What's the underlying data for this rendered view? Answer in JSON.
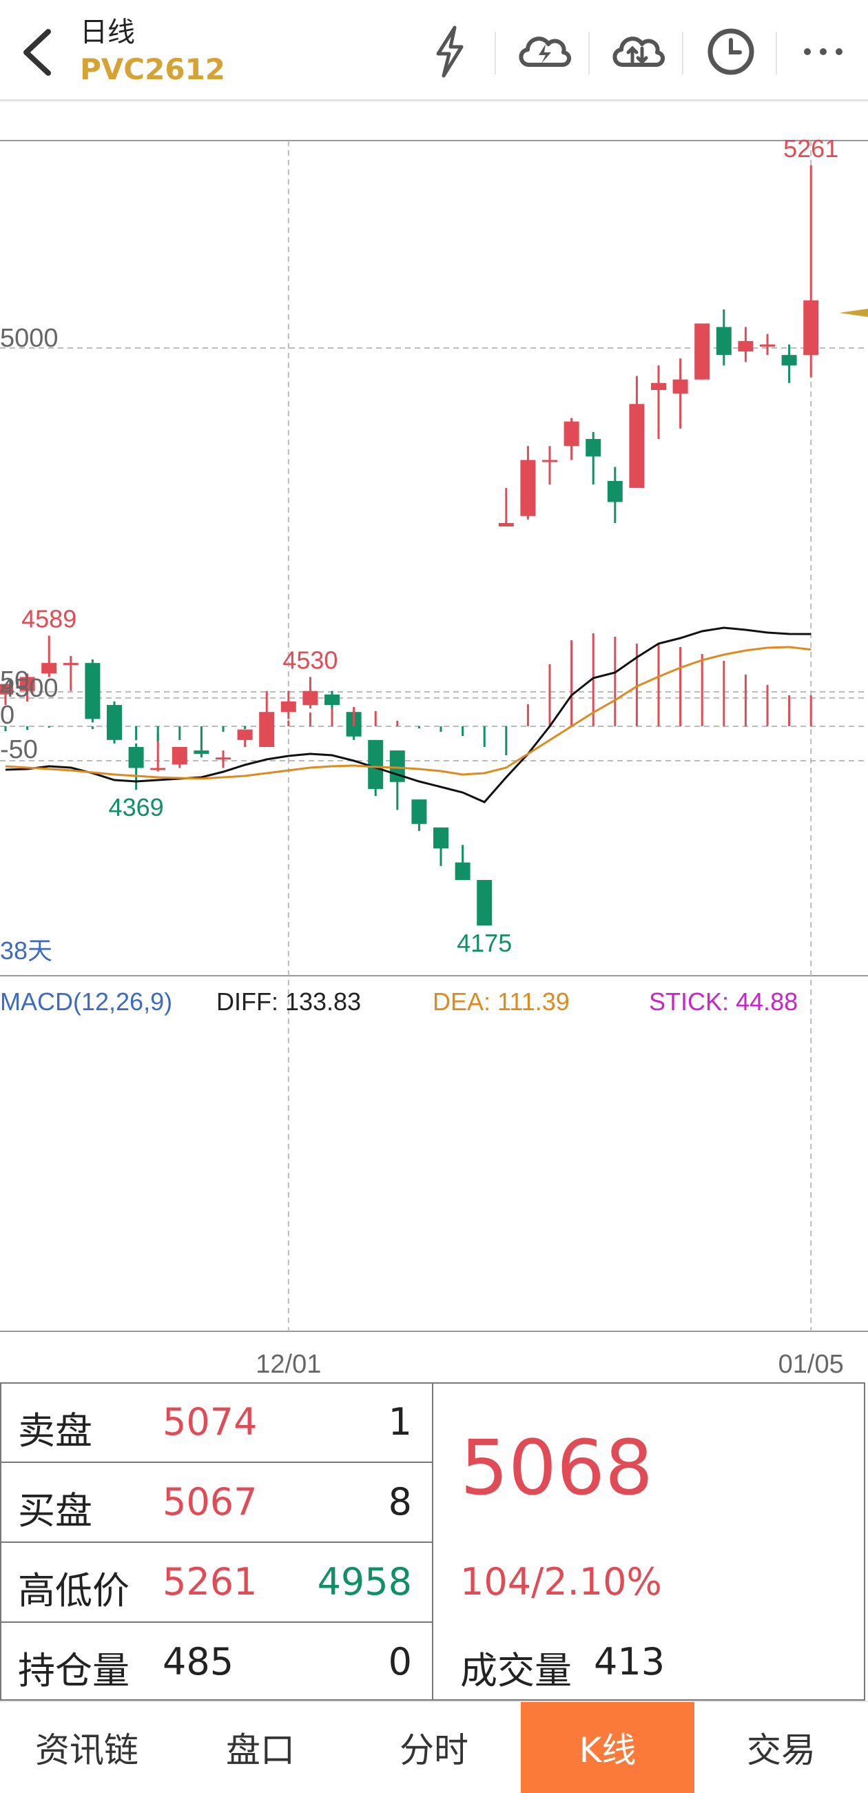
{
  "header": {
    "title": "日线",
    "symbol": "PVC2612"
  },
  "icons": [
    "back-arrow-icon",
    "lightning-icon",
    "cloud-lightning-icon",
    "cloud-sync-icon",
    "clock-icon",
    "more-icon"
  ],
  "colors": {
    "up": "#e04b55",
    "down": "#119065",
    "accent": "#d6a233",
    "active_tab": "#fb7a3a"
  },
  "chart_data": [
    {
      "type": "candlestick",
      "x": [
        "d1",
        "d2",
        "d3",
        "d4",
        "d5",
        "d6",
        "d7",
        "d8",
        "d9",
        "d10",
        "d11",
        "d12",
        "d13",
        "d14",
        "d15",
        "d16",
        "d17",
        "d18",
        "d19",
        "d20",
        "d21",
        "d22",
        "d23",
        "d24",
        "d25",
        "d26",
        "d27",
        "d28",
        "d29",
        "d30",
        "d31",
        "d32",
        "d33",
        "d34",
        "d35",
        "d36",
        "d37",
        "d38"
      ],
      "date_labels": [
        {
          "index": 13,
          "label": "12/01"
        },
        {
          "index": 37,
          "label": "01/05"
        }
      ],
      "series": [
        {
          "open": 4505,
          "high": 4520,
          "low": 4490,
          "close": 4520
        },
        {
          "open": 4510,
          "high": 4535,
          "low": 4495,
          "close": 4530
        },
        {
          "open": 4535,
          "high": 4589,
          "low": 4530,
          "close": 4550
        },
        {
          "open": 4550,
          "high": 4560,
          "low": 4510,
          "close": 4550
        },
        {
          "open": 4550,
          "high": 4555,
          "low": 4465,
          "close": 4470
        },
        {
          "open": 4490,
          "high": 4495,
          "low": 4435,
          "close": 4440
        },
        {
          "open": 4430,
          "high": 4435,
          "low": 4369,
          "close": 4400
        },
        {
          "open": 4400,
          "high": 4450,
          "low": 4395,
          "close": 4400
        },
        {
          "open": 4405,
          "high": 4430,
          "low": 4400,
          "close": 4430
        },
        {
          "open": 4425,
          "high": 4450,
          "low": 4415,
          "close": 4420
        },
        {
          "open": 4415,
          "high": 4425,
          "low": 4400,
          "close": 4415
        },
        {
          "open": 4440,
          "high": 4450,
          "low": 4430,
          "close": 4455
        },
        {
          "open": 4430,
          "high": 4510,
          "low": 4430,
          "close": 4480
        },
        {
          "open": 4480,
          "high": 4510,
          "low": 4470,
          "close": 4495
        },
        {
          "open": 4490,
          "high": 4530,
          "low": 4485,
          "close": 4510
        },
        {
          "open": 4505,
          "high": 4510,
          "low": 4480,
          "close": 4490
        },
        {
          "open": 4480,
          "high": 4480,
          "low": 4440,
          "close": 4445
        },
        {
          "open": 4440,
          "high": 4440,
          "low": 4360,
          "close": 4370
        },
        {
          "open": 4425,
          "high": 4425,
          "low": 4340,
          "close": 4380
        },
        {
          "open": 4355,
          "high": 4355,
          "low": 4310,
          "close": 4320
        },
        {
          "open": 4315,
          "high": 4315,
          "low": 4260,
          "close": 4285
        },
        {
          "open": 4265,
          "high": 4290,
          "low": 4240,
          "close": 4240
        },
        {
          "open": 4240,
          "high": 4240,
          "low": 4175,
          "close": 4175
        },
        {
          "open": 4745,
          "high": 4800,
          "low": 4745,
          "close": 4750
        },
        {
          "open": 4760,
          "high": 4860,
          "low": 4755,
          "close": 4840
        },
        {
          "open": 4840,
          "high": 4860,
          "low": 4805,
          "close": 4840
        },
        {
          "open": 4860,
          "high": 4900,
          "low": 4840,
          "close": 4895
        },
        {
          "open": 4870,
          "high": 4880,
          "low": 4805,
          "close": 4845
        },
        {
          "open": 4810,
          "high": 4830,
          "low": 4750,
          "close": 4780
        },
        {
          "open": 4800,
          "high": 4960,
          "low": 4800,
          "close": 4920
        },
        {
          "open": 4940,
          "high": 4975,
          "low": 4870,
          "close": 4950
        },
        {
          "open": 4935,
          "high": 4985,
          "low": 4885,
          "close": 4955
        },
        {
          "open": 4955,
          "high": 5035,
          "low": 4955,
          "close": 5035
        },
        {
          "open": 5030,
          "high": 5055,
          "low": 4975,
          "close": 4990
        },
        {
          "open": 4995,
          "high": 5030,
          "low": 4980,
          "close": 5010
        },
        {
          "open": 5005,
          "high": 5020,
          "low": 4990,
          "close": 5005
        },
        {
          "open": 4990,
          "high": 5005,
          "low": 4950,
          "close": 4975
        },
        {
          "open": 4990,
          "high": 5261,
          "low": 4958,
          "close": 5068
        }
      ],
      "y_labels": [
        "5000",
        "4500"
      ],
      "marks": [
        {
          "index": 2,
          "value": "4589",
          "kind": "high"
        },
        {
          "index": 6,
          "value": "4369",
          "kind": "low"
        },
        {
          "index": 14,
          "value": "4530",
          "kind": "high"
        },
        {
          "index": 22,
          "value": "4175",
          "kind": "low"
        },
        {
          "index": 37,
          "value": "5261",
          "kind": "high"
        }
      ],
      "period_label": "38天"
    },
    {
      "type": "macd",
      "name": "MACD(12,26,9)",
      "diff_label": "DIFF: 133.83",
      "dea_label": "DEA: 111.39",
      "stick_label": "STICK: 44.88",
      "y_labels": [
        "50",
        "0",
        "-50"
      ],
      "stick": [
        -7,
        -5,
        -2,
        0,
        -4,
        -12,
        -20,
        -22,
        -20,
        -12,
        -8,
        -4,
        3,
        8,
        20,
        26,
        28,
        22,
        8,
        -3,
        -8,
        -14,
        -30,
        -42,
        32,
        90,
        125,
        135,
        130,
        120,
        120,
        115,
        105,
        95,
        75,
        60,
        45,
        45
      ],
      "diff": [
        -63,
        -62,
        -58,
        -60,
        -68,
        -78,
        -80,
        -78,
        -76,
        -74,
        -66,
        -56,
        -48,
        -43,
        -40,
        -42,
        -50,
        -60,
        -70,
        -80,
        -88,
        -96,
        -110,
        -74,
        -40,
        0,
        45,
        70,
        78,
        100,
        120,
        128,
        138,
        143,
        140,
        136,
        134,
        133.83
      ],
      "dea": [
        -58,
        -60,
        -62,
        -64,
        -67,
        -70,
        -72,
        -74,
        -75,
        -76,
        -74,
        -72,
        -68,
        -64,
        -60,
        -58,
        -57,
        -59,
        -60,
        -62,
        -65,
        -70,
        -68,
        -60,
        -40,
        -20,
        0,
        20,
        38,
        58,
        72,
        85,
        96,
        104,
        110,
        114,
        115,
        111.39
      ]
    }
  ],
  "info": {
    "sell": {
      "label": "卖盘",
      "price": "5074",
      "qty": "1"
    },
    "buy": {
      "label": "买盘",
      "price": "5067",
      "qty": "8"
    },
    "highlow": {
      "label": "高低价",
      "high": "5261",
      "low": "4958"
    },
    "oi": {
      "label": "持仓量",
      "value": "485",
      "change": "0"
    },
    "last": "5068",
    "change": "104/2.10%",
    "volume_label": "成交量",
    "volume": "413"
  },
  "nav": [
    {
      "label": "资讯链",
      "active": false
    },
    {
      "label": "盘口",
      "active": false
    },
    {
      "label": "分时",
      "active": false
    },
    {
      "label": "K线",
      "active": true
    },
    {
      "label": "交易",
      "active": false
    }
  ]
}
